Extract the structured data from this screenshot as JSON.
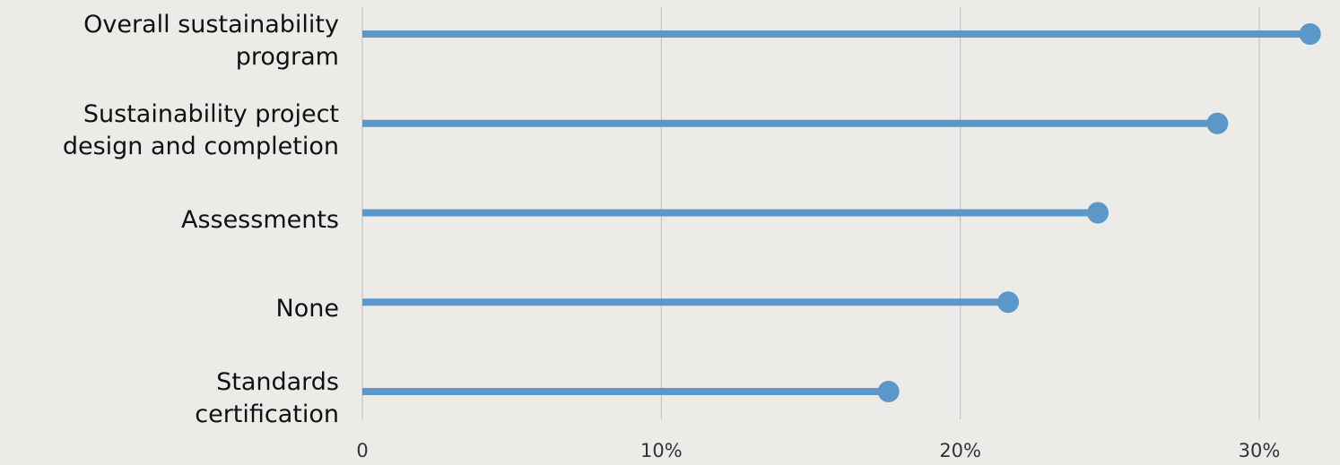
{
  "chart_data": {
    "type": "lollipop",
    "categories": [
      "Overall sustainability\nprogram",
      "Sustainability project\ndesign and completion",
      "Assessments",
      "None",
      "Standards\ncertification"
    ],
    "values": [
      31.7,
      28.6,
      24.6,
      21.6,
      17.6
    ],
    "color": "#5b97c8",
    "xlim": [
      0,
      32.7
    ],
    "xticks": [
      0,
      {
        "value": 10,
        "label": "10%"
      },
      {
        "value": 20,
        "label": "20%"
      },
      {
        "value": 30,
        "label": "30%"
      }
    ],
    "grid": true
  }
}
